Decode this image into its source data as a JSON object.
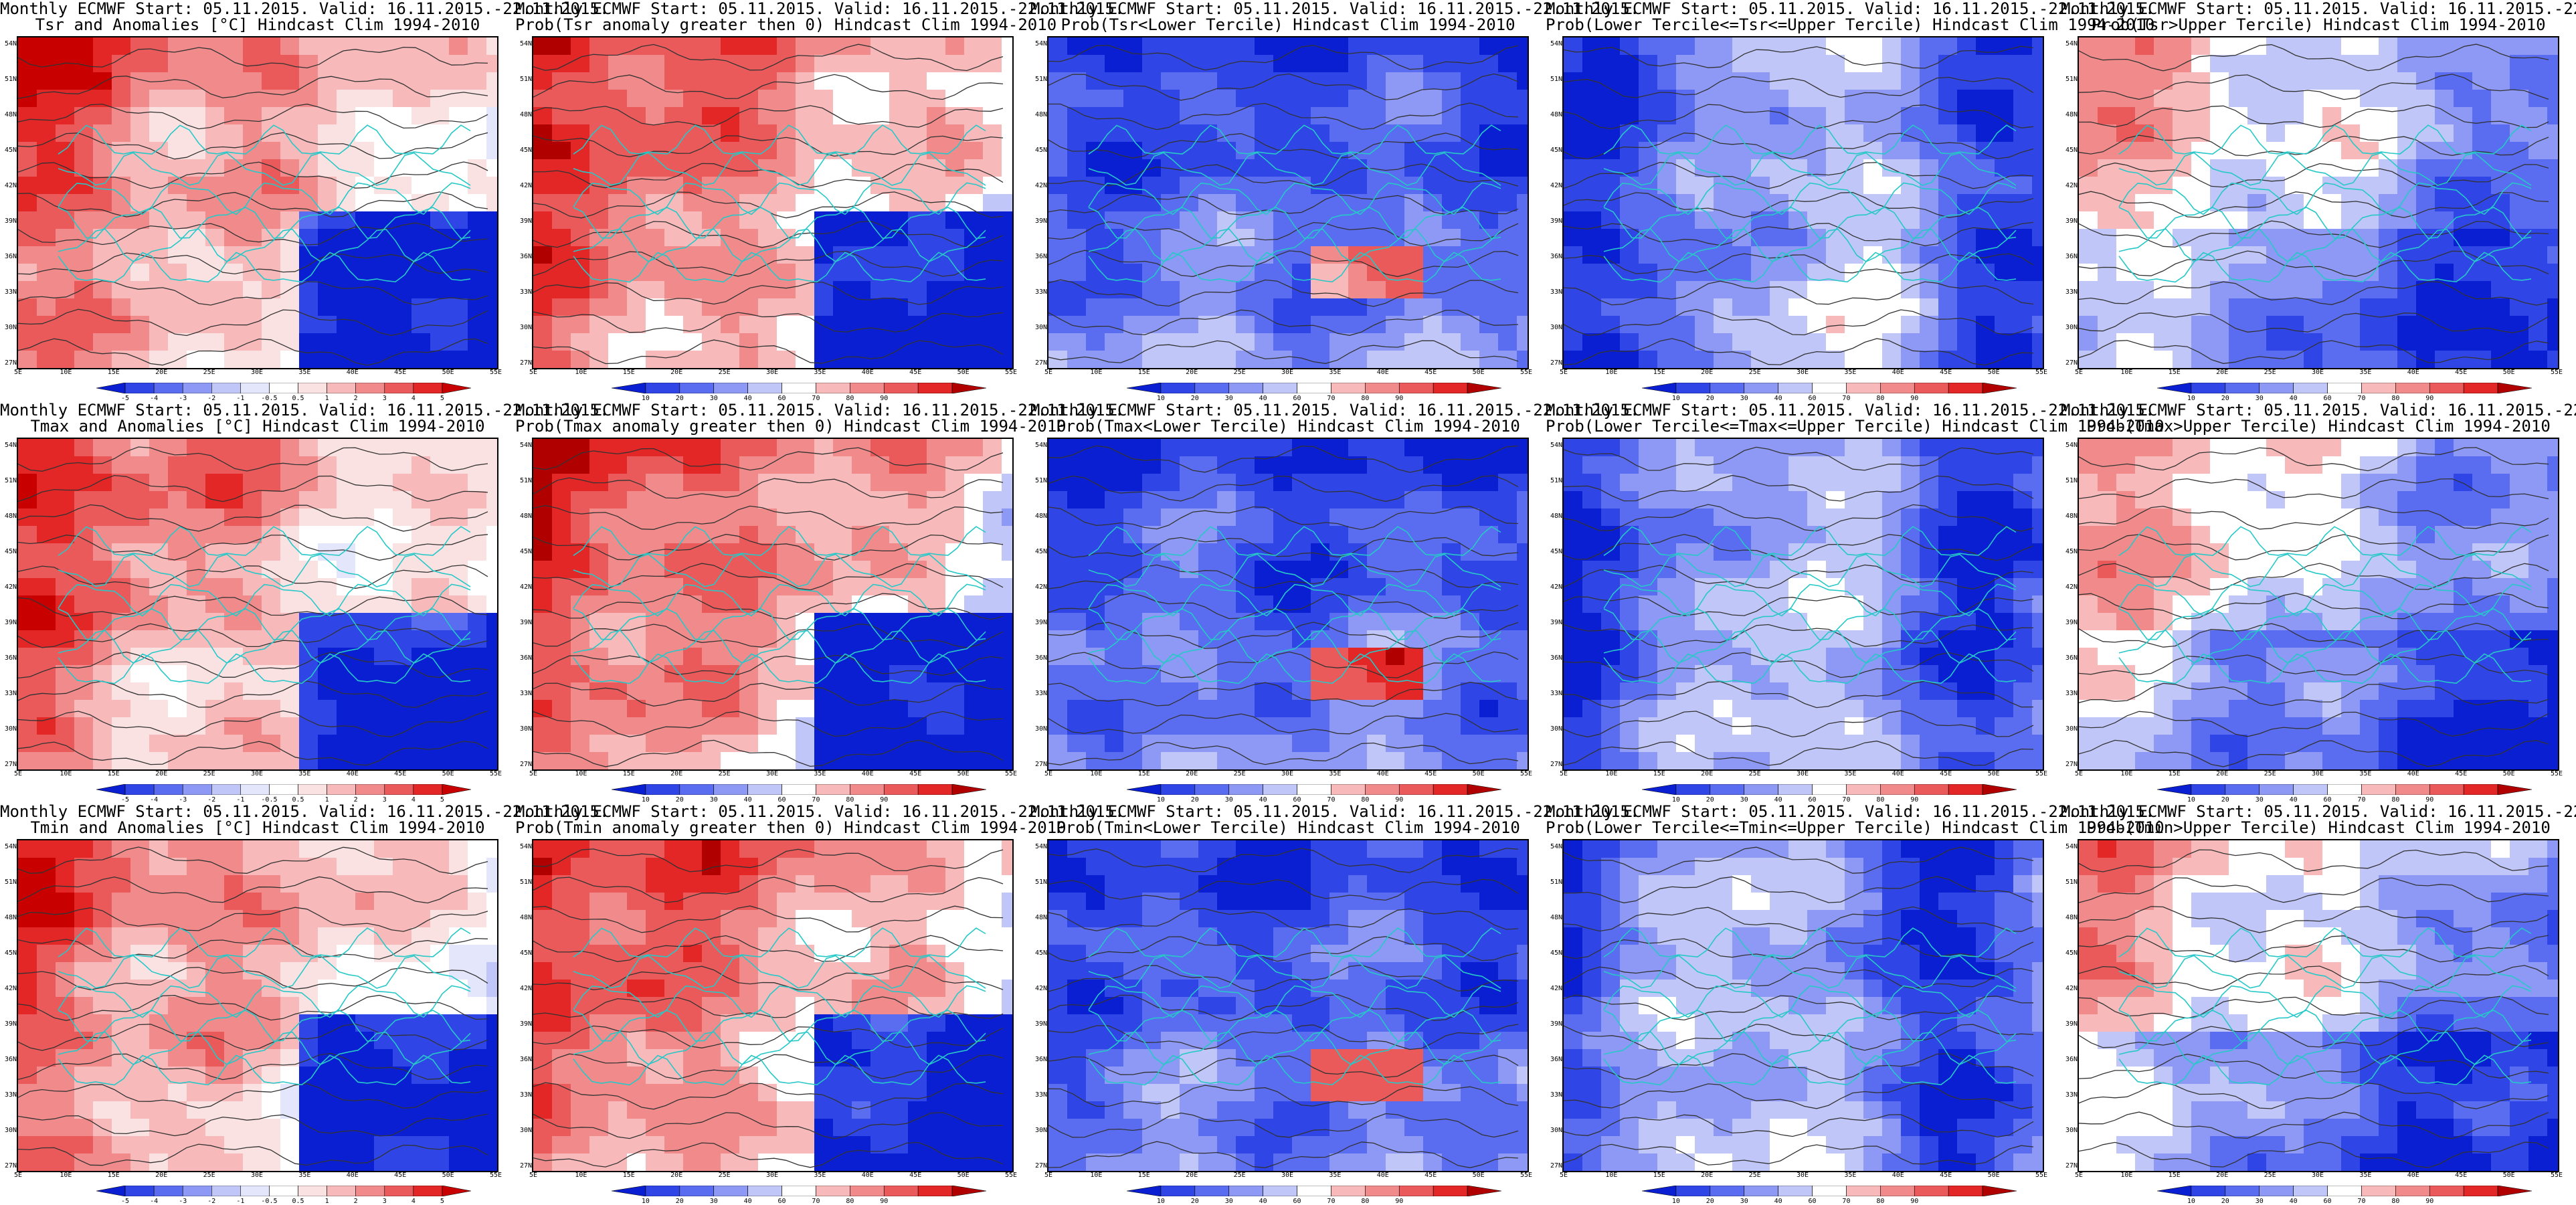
{
  "title_line1": "Monthly ECMWF Start: 05.11.2015. Valid: 16.11.2015.-22.11.2015.",
  "y_ticks": [
    "54N",
    "51N",
    "48N",
    "45N",
    "42N",
    "39N",
    "36N",
    "33N",
    "30N",
    "27N"
  ],
  "x_ticks": [
    "5E",
    "10E",
    "15E",
    "20E",
    "25E",
    "30E",
    "35E",
    "40E",
    "45E",
    "50E",
    "55E"
  ],
  "legend_ticks": {
    "anomaly": [
      "-5",
      "-4",
      "-3",
      "-2",
      "-1",
      "-0.5",
      "0.5",
      "1",
      "2",
      "3",
      "4",
      "5"
    ],
    "probability": [
      "10",
      "20",
      "30",
      "40",
      "60",
      "70",
      "80",
      "90"
    ]
  },
  "palettes": {
    "anomaly": [
      "#0a1ed2",
      "#2f45e6",
      "#5a6cf0",
      "#8e99f5",
      "#c0c6f8",
      "#e4e7fb",
      "#ffffff",
      "#fbe2e2",
      "#f7b9b9",
      "#f18b8b",
      "#ea5a5a",
      "#e32626",
      "#c80000"
    ],
    "probability": [
      "#0a1ed2",
      "#2f45e6",
      "#5a6cf0",
      "#8e99f5",
      "#c0c6f8",
      "#ffffff",
      "#f7b9b9",
      "#f18b8b",
      "#ea5a5a",
      "#e32626",
      "#b00000"
    ],
    "coast": "#27c8c8",
    "contour": "#333333"
  },
  "panels": [
    {
      "title2": "Tsr and Anomalies [°C] Hindcast Clim 1994-2010",
      "scale": "anomaly",
      "pattern": "warm-west"
    },
    {
      "title2": "Prob(Tsr anomaly greater then 0) Hindcast Clim 1994-2010",
      "scale": "probability",
      "pattern": "warm-west"
    },
    {
      "title2": "Prob(Tsr<Lower Tercile) Hindcast Clim 1994-2010",
      "scale": "probability",
      "pattern": "cold-all"
    },
    {
      "title2": "Prob(Lower Tercile<=Tsr<=Upper Tercile) Hindcast Clim 1994-2010",
      "scale": "probability",
      "pattern": "mixed-cool"
    },
    {
      "title2": "Prob(Tsr>Upper Tercile) Hindcast Clim 1994-2010",
      "scale": "probability",
      "pattern": "warm-nw-cold-se"
    },
    {
      "title2": "Tmax and Anomalies [°C] Hindcast Clim 1994-2010",
      "scale": "anomaly",
      "pattern": "warm-west"
    },
    {
      "title2": "Prob(Tmax anomaly greater then 0) Hindcast Clim 1994-2010",
      "scale": "probability",
      "pattern": "warm-west"
    },
    {
      "title2": "Prob(Tmax<Lower Tercile) Hindcast Clim 1994-2010",
      "scale": "probability",
      "pattern": "cold-all"
    },
    {
      "title2": "Prob(Lower Tercile<=Tmax<=Upper Tercile) Hindcast Clim 1994-2010",
      "scale": "probability",
      "pattern": "mixed-cool"
    },
    {
      "title2": "Prob(Tmax>Upper Tercile) Hindcast Clim 1994-2010",
      "scale": "probability",
      "pattern": "warm-nw-cold-se"
    },
    {
      "title2": "Tmin and Anomalies [°C] Hindcast Clim 1994-2010",
      "scale": "anomaly",
      "pattern": "warm-west"
    },
    {
      "title2": "Prob(Tmin anomaly greater then 0) Hindcast Clim 1994-2010",
      "scale": "probability",
      "pattern": "warm-west"
    },
    {
      "title2": "Prob(Tmin<Lower Tercile) Hindcast Clim 1994-2010",
      "scale": "probability",
      "pattern": "cold-all"
    },
    {
      "title2": "Prob(Lower Tercile<=Tmin<=Upper Tercile) Hindcast Clim 1994-2010",
      "scale": "probability",
      "pattern": "mixed-cool"
    },
    {
      "title2": "Prob(Tmin>Upper Tercile) Hindcast Clim 1994-2010",
      "scale": "probability",
      "pattern": "warm-nw-cold-se"
    }
  ]
}
